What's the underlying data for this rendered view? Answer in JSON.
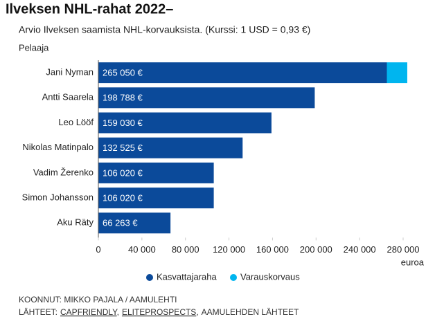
{
  "chart_data": {
    "type": "hbar_stacked",
    "title": "Ilveksen NHL-rahat 2022–",
    "subtitle": "Arvio Ilveksen saamista NHL-korvauksista. (Kurssi: 1 USD = 0,93 €)",
    "y_label": "Pelaaja",
    "x_label": "euroa",
    "categories": [
      "Jani Nyman",
      "Antti Saarela",
      "Leo Lööf",
      "Nikolas Matinpalo",
      "Vadim Žerenko",
      "Simon Johansson",
      "Aku Räty"
    ],
    "series": [
      {
        "name": "Kasvattajaraha",
        "color": "#0b4a9a",
        "values": [
          265050,
          198788,
          159030,
          132525,
          106020,
          106020,
          66263
        ],
        "value_labels": [
          "265 050 €",
          "198 788 €",
          "159 030 €",
          "132 525 €",
          "106 020 €",
          "106 020 €",
          "66 263 €"
        ]
      },
      {
        "name": "Varauskorvaus",
        "color": "#00b5ef",
        "values": [
          18750,
          null,
          null,
          null,
          null,
          null,
          null
        ]
      }
    ],
    "xlim": [
      0,
      280000
    ],
    "xticks": [
      0,
      {
        "value": 40000,
        "label": "40 000"
      },
      {
        "value": 80000,
        "label": "80 000"
      },
      {
        "value": 120000,
        "label": "120 000"
      },
      {
        "value": 160000,
        "label": "160 000"
      },
      {
        "value": 200000,
        "label": "200 000"
      },
      {
        "value": 240000,
        "label": "240 000"
      },
      {
        "value": 280000,
        "label": "280 000"
      }
    ],
    "credit": "KOONNUT: MIKKO PAJALA / AAMULEHTI",
    "sources": {
      "label": "LÄHTEET:",
      "separator": ",",
      "items": [
        "CAPFRIENDLY",
        "ELITEPROSPECTS",
        "AAMULEHDEN LÄHTEET"
      ]
    }
  }
}
